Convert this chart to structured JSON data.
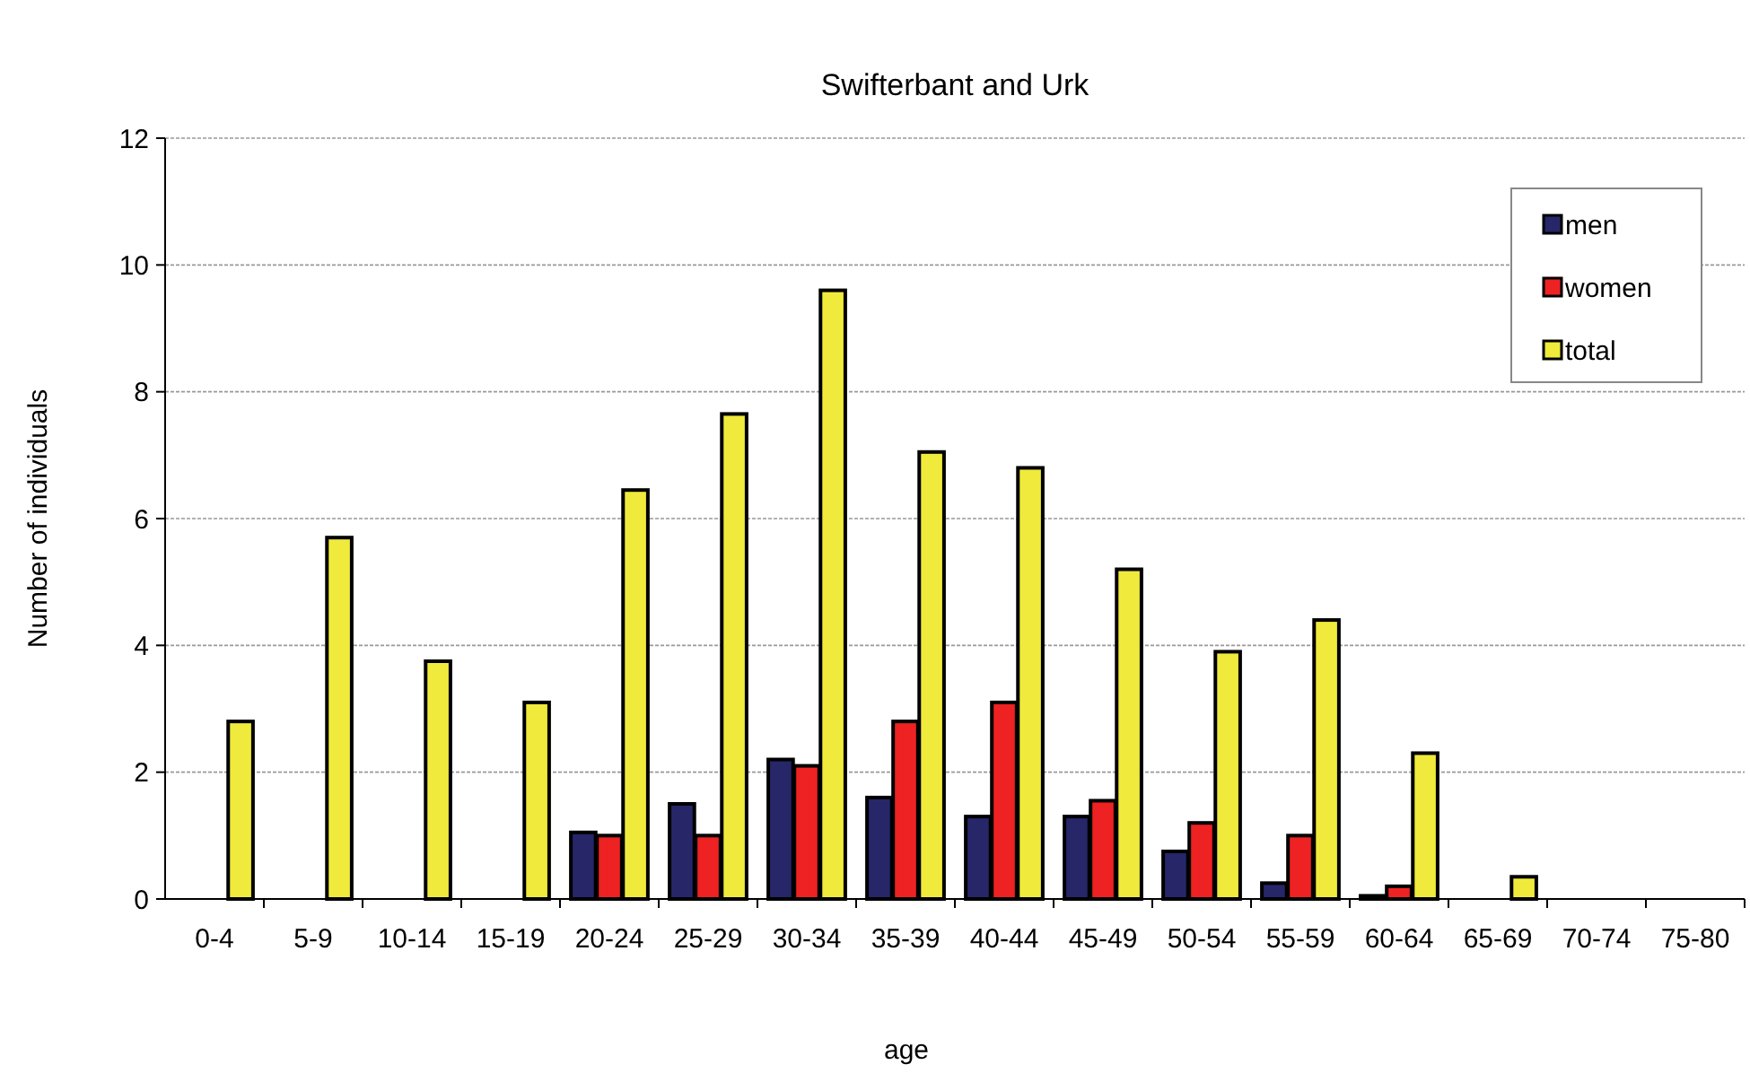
{
  "chart_data": {
    "type": "bar",
    "title": "Swifterbant and Urk",
    "xlabel": "age",
    "ylabel": "Number of individuals",
    "categories": [
      "0-4",
      "5-9",
      "10-14",
      "15-19",
      "20-24",
      "25-29",
      "30-34",
      "35-39",
      "40-44",
      "45-49",
      "50-54",
      "55-59",
      "60-64",
      "65-69",
      "70-74",
      "75-80"
    ],
    "series": [
      {
        "name": "men",
        "color": "#262669",
        "values": [
          0,
          0,
          0,
          0,
          1.05,
          1.5,
          2.2,
          1.6,
          1.3,
          1.3,
          0.75,
          0.25,
          0.05,
          0,
          0,
          0
        ]
      },
      {
        "name": "women",
        "color": "#ee2222",
        "values": [
          0,
          0,
          0,
          0,
          1.0,
          1.0,
          2.1,
          2.8,
          3.1,
          1.55,
          1.2,
          1.0,
          0.2,
          0,
          0,
          0
        ]
      },
      {
        "name": "total",
        "color": "#f0ea3c",
        "values": [
          2.8,
          5.7,
          3.75,
          3.1,
          6.45,
          7.65,
          9.6,
          7.05,
          6.8,
          5.2,
          3.9,
          4.4,
          2.3,
          0.35,
          0,
          0
        ]
      }
    ],
    "ylim": [
      0,
      12
    ],
    "yticks": [
      0,
      2,
      4,
      6,
      8,
      10,
      12
    ],
    "grid": "y",
    "legend": "top right"
  }
}
